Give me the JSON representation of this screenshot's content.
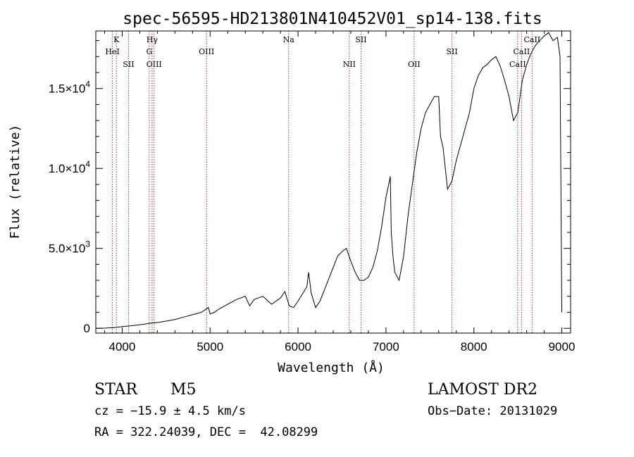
{
  "chart_data": {
    "type": "line",
    "title": "spec-56595-HD213801N410452V01_sp14-138.fits",
    "xlabel": "Wavelength (Å)",
    "ylabel": "Flux (relative)",
    "xlim": [
      3700,
      9100
    ],
    "ylim": [
      -300,
      18600
    ],
    "x_ticks": [
      {
        "value": 4000,
        "label": "4000"
      },
      {
        "value": 5000,
        "label": "5000"
      },
      {
        "value": 6000,
        "label": "6000"
      },
      {
        "value": 7000,
        "label": "7000"
      },
      {
        "value": 8000,
        "label": "8000"
      },
      {
        "value": 9000,
        "label": "9000"
      }
    ],
    "y_ticks": [
      {
        "value": 0,
        "mant": "0",
        "exp": ""
      },
      {
        "value": 5000,
        "mant": "5.0×10",
        "exp": "3"
      },
      {
        "value": 10000,
        "mant": "1.0×10",
        "exp": "4"
      },
      {
        "value": 15000,
        "mant": "1.5×10",
        "exp": "4"
      }
    ],
    "series": [
      {
        "color": "#000000",
        "x": [
          3700,
          3800,
          3900,
          4000,
          4100,
          4200,
          4300,
          4400,
          4500,
          4600,
          4700,
          4800,
          4900,
          4980,
          5000,
          5050,
          5100,
          5200,
          5300,
          5400,
          5450,
          5500,
          5600,
          5700,
          5800,
          5850,
          5900,
          5950,
          6000,
          6100,
          6120,
          6150,
          6200,
          6250,
          6300,
          6400,
          6450,
          6500,
          6550,
          6600,
          6650,
          6700,
          6750,
          6800,
          6850,
          6900,
          6950,
          7000,
          7050,
          7060,
          7080,
          7100,
          7150,
          7200,
          7250,
          7300,
          7350,
          7400,
          7450,
          7500,
          7550,
          7600,
          7620,
          7650,
          7700,
          7750,
          7800,
          7850,
          7900,
          7950,
          8000,
          8050,
          8100,
          8150,
          8200,
          8250,
          8300,
          8350,
          8400,
          8450,
          8500,
          8550,
          8600,
          8650,
          8700,
          8750,
          8800,
          8850,
          8900,
          8950,
          8980,
          9000
        ],
        "y": [
          0,
          10,
          40,
          100,
          160,
          220,
          300,
          360,
          450,
          550,
          700,
          850,
          1000,
          1300,
          900,
          1000,
          1200,
          1500,
          1800,
          2000,
          1400,
          1800,
          2000,
          1500,
          1900,
          2300,
          1400,
          1300,
          1700,
          2600,
          3500,
          2200,
          1300,
          1700,
          2400,
          3800,
          4500,
          4800,
          5000,
          4200,
          3500,
          3000,
          3000,
          3200,
          3800,
          4800,
          6300,
          8200,
          9500,
          6000,
          4500,
          3500,
          3000,
          4500,
          7000,
          9000,
          11000,
          12500,
          13500,
          14000,
          14500,
          14500,
          12000,
          11300,
          8700,
          9200,
          10500,
          11500,
          12500,
          13500,
          15000,
          15800,
          16300,
          16500,
          16800,
          17000,
          16400,
          15500,
          14500,
          13000,
          13500,
          15500,
          16500,
          17200,
          17700,
          18000,
          18300,
          18500,
          18000,
          18200,
          17000,
          1000
        ],
        "name": ""
      }
    ],
    "lines": [
      {
        "name": "K",
        "wave": 3934,
        "label_row": 0
      },
      {
        "name": "HeI",
        "wave": 3889,
        "label_row": 1
      },
      {
        "name": "SII",
        "wave": 4072,
        "label_row": 2
      },
      {
        "name": "Hγ",
        "wave": 4340,
        "label_row": 0
      },
      {
        "name": "G",
        "wave": 4308,
        "label_row": 1
      },
      {
        "name": "OIII",
        "wave": 4363,
        "label_row": 2
      },
      {
        "name": "OIII",
        "wave": 4959,
        "label_row": 1
      },
      {
        "name": "Na",
        "wave": 5893,
        "label_row": 0
      },
      {
        "name": "NII",
        "wave": 6583,
        "label_row": 2
      },
      {
        "name": "SII",
        "wave": 6716,
        "label_row": 0
      },
      {
        "name": "OII",
        "wave": 7320,
        "label_row": 2
      },
      {
        "name": "SII",
        "wave": 7751,
        "label_row": 1
      },
      {
        "name": "CaII",
        "wave": 8498,
        "label_row": 2
      },
      {
        "name": "CaII",
        "wave": 8542,
        "label_row": 1
      },
      {
        "name": "CaII",
        "wave": 8662,
        "label_row": 0
      }
    ],
    "line_color": "#b03030"
  },
  "info": {
    "object_class": "STAR",
    "subclass": "M5",
    "survey": "LAMOST DR2",
    "cz": "cz = −15.9 ± 4.5 km/s",
    "obs_date": "Obs−Date: 20131029",
    "coords": "RA = 322.24039, DEC =  42.08299"
  }
}
